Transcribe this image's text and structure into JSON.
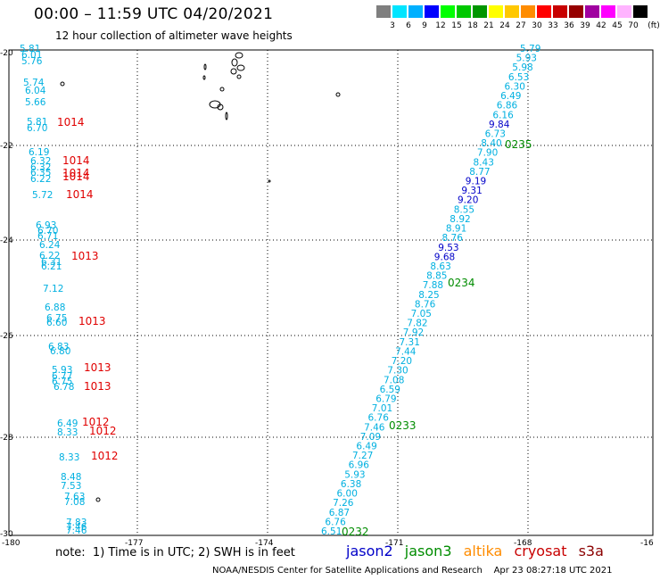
{
  "header": {
    "title": "00:00 – 11:59 UTC 04/20/2021",
    "subtitle": "12 hour collection of altimeter wave heights"
  },
  "scale": {
    "unit": "(ft)",
    "bins": [
      {
        "label": "3",
        "color": "#7f7f7f"
      },
      {
        "label": "6",
        "color": "#00e5ff"
      },
      {
        "label": "9",
        "color": "#00b0ff"
      },
      {
        "label": "12",
        "color": "#0000ff"
      },
      {
        "label": "15",
        "color": "#00ff00"
      },
      {
        "label": "18",
        "color": "#00c800"
      },
      {
        "label": "21",
        "color": "#009600"
      },
      {
        "label": "24",
        "color": "#ffff00"
      },
      {
        "label": "27",
        "color": "#ffc800"
      },
      {
        "label": "30",
        "color": "#ff8c00"
      },
      {
        "label": "33",
        "color": "#ff0000"
      },
      {
        "label": "36",
        "color": "#c80000"
      },
      {
        "label": "39",
        "color": "#960000"
      },
      {
        "label": "42",
        "color": "#a000a0"
      },
      {
        "label": "45",
        "color": "#ff00ff"
      },
      {
        "label": "70",
        "color": "#ffb4ff"
      },
      {
        "label": "",
        "color": "#000000"
      }
    ]
  },
  "axes": {
    "x_ticks": [
      "-180",
      "-177",
      "-174",
      "-171",
      "-168",
      "-16"
    ],
    "y_ticks": [
      "-20",
      "-22",
      "-24",
      "-26",
      "-28",
      "-30"
    ]
  },
  "colors": {
    "jason2": "#0000c8",
    "jason3": "#008c00",
    "altika": "#ff8c00",
    "cryosat": "#c80000",
    "s3a": "#8b0000",
    "swh_light": "#00b0e0",
    "pressure": "#e00000"
  },
  "track_points": [
    {
      "v": "5.79",
      "c": "light"
    },
    {
      "v": "5.93",
      "c": "light"
    },
    {
      "v": "5.98",
      "c": "light"
    },
    {
      "v": "6.53",
      "c": "light"
    },
    {
      "v": "6.30",
      "c": "light"
    },
    {
      "v": "6.49",
      "c": "light"
    },
    {
      "v": "6.86",
      "c": "light"
    },
    {
      "v": "6.16",
      "c": "light"
    },
    {
      "v": "9.84",
      "c": "dark"
    },
    {
      "v": "6.73",
      "c": "light"
    },
    {
      "v": "8.40",
      "c": "light"
    },
    {
      "v": "7.90",
      "c": "light"
    },
    {
      "v": "8.43",
      "c": "light"
    },
    {
      "v": "8.77",
      "c": "light"
    },
    {
      "v": "9.19",
      "c": "dark"
    },
    {
      "v": "9.31",
      "c": "dark"
    },
    {
      "v": "9.20",
      "c": "dark"
    },
    {
      "v": "8.55",
      "c": "light"
    },
    {
      "v": "8.92",
      "c": "light"
    },
    {
      "v": "8.91",
      "c": "light"
    },
    {
      "v": "8.76",
      "c": "light"
    },
    {
      "v": "9.53",
      "c": "dark"
    },
    {
      "v": "9.68",
      "c": "dark"
    },
    {
      "v": "8.63",
      "c": "light"
    },
    {
      "v": "8.85",
      "c": "light"
    },
    {
      "v": "7.88",
      "c": "light"
    },
    {
      "v": "8.25",
      "c": "light"
    },
    {
      "v": "8.76",
      "c": "light"
    },
    {
      "v": "7.05",
      "c": "light"
    },
    {
      "v": "7.82",
      "c": "light"
    },
    {
      "v": "7.92",
      "c": "light"
    },
    {
      "v": "7.31",
      "c": "light"
    },
    {
      "v": "7.44",
      "c": "light"
    },
    {
      "v": "7.20",
      "c": "light"
    },
    {
      "v": "7.30",
      "c": "light"
    },
    {
      "v": "7.08",
      "c": "light"
    },
    {
      "v": "6.59",
      "c": "light"
    },
    {
      "v": "6.79",
      "c": "light"
    },
    {
      "v": "7.01",
      "c": "light"
    },
    {
      "v": "6.76",
      "c": "light"
    },
    {
      "v": "7.46",
      "c": "light"
    },
    {
      "v": "7.09",
      "c": "light"
    },
    {
      "v": "6.49",
      "c": "light"
    },
    {
      "v": "7.27",
      "c": "light"
    },
    {
      "v": "6.96",
      "c": "light"
    },
    {
      "v": "5.93",
      "c": "light"
    },
    {
      "v": "6.38",
      "c": "light"
    },
    {
      "v": "6.00",
      "c": "light"
    },
    {
      "v": "7.26",
      "c": "light"
    },
    {
      "v": "6.87",
      "c": "light"
    },
    {
      "v": "6.76",
      "c": "light"
    },
    {
      "v": "6.51",
      "c": "light"
    }
  ],
  "time_labels": [
    "0235",
    "0234",
    "0233",
    "0232"
  ],
  "left_swh": [
    "5.81",
    "6.01",
    "5.76",
    "5.74",
    "6.04",
    "5.66",
    "5.81",
    "6.70",
    "6.19",
    "6.32",
    "6.32",
    "6.35",
    "6.22",
    "5.72",
    "6.93",
    "6.70",
    "6.71",
    "6.24",
    "6.22",
    "6.31",
    "6.21",
    "7.12",
    "6.88",
    "6.75",
    "6.60",
    "6.83",
    "6.80",
    "5.93",
    "6.77",
    "6.75",
    "6.78",
    "6.49",
    "8.33",
    "8.33",
    "8.48",
    "7.53",
    "7.63",
    "7.08",
    "7.83",
    "7.46",
    "7.46"
  ],
  "pressures": [
    "1014",
    "1014",
    "1014",
    "1014",
    "1014",
    "1013",
    "1013",
    "1013",
    "1013",
    "1012",
    "1012",
    "1012"
  ],
  "footer": {
    "note": "note:  1) Time is in UTC; 2) SWH is in feet",
    "legend": [
      "jason2",
      "jason3",
      "altika",
      "cryosat",
      "s3a"
    ],
    "credit": "NOAA/NESDIS Center for Satellite Applications and Research    Apr 23 08:27:18 UTC 2021"
  }
}
